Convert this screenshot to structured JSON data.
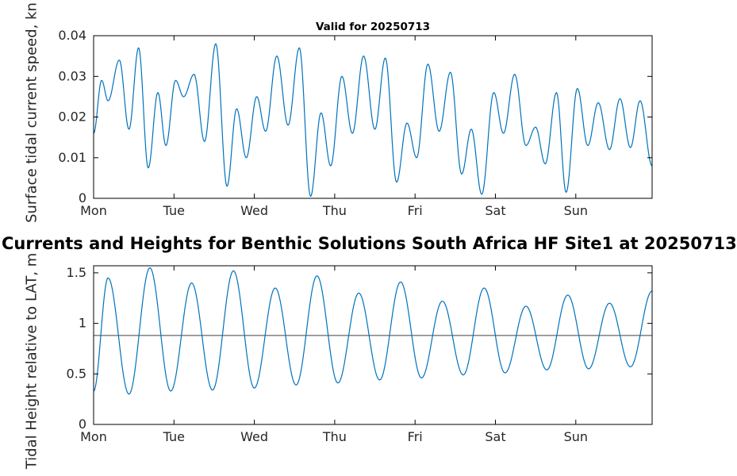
{
  "main_title": "Currents and Heights for Benthic Solutions South Africa HF Site1 at 20250713",
  "colors": {
    "background": "#ffffff",
    "line": "#0072BD",
    "refline": "#404040",
    "axis": "#000000",
    "tick_text": "#262626"
  },
  "chart_data": [
    {
      "type": "line",
      "title": "Valid for 20250713",
      "ylabel": "Surface tidal current speed, kn",
      "x_unit": "days since Monday 00:00",
      "xlim": [
        0,
        6.95
      ],
      "ylim": [
        0,
        0.04
      ],
      "xticks": [
        0,
        1,
        2,
        3,
        4,
        5,
        6
      ],
      "xticklabels": [
        "Mon",
        "Tue",
        "Wed",
        "Thu",
        "Fri",
        "Sat",
        "Sun"
      ],
      "yticks": [
        0,
        0.01,
        0.02,
        0.03,
        0.04
      ],
      "yticklabels": [
        "0",
        "0.01",
        "0.02",
        "0.03",
        "0.04"
      ],
      "grid": false,
      "legend": "none",
      "extrema": [
        [
          0.0,
          0.016
        ],
        [
          0.1,
          0.029
        ],
        [
          0.18,
          0.024
        ],
        [
          0.32,
          0.034
        ],
        [
          0.44,
          0.017
        ],
        [
          0.56,
          0.037
        ],
        [
          0.68,
          0.0075
        ],
        [
          0.8,
          0.026
        ],
        [
          0.9,
          0.013
        ],
        [
          1.02,
          0.029
        ],
        [
          1.12,
          0.025
        ],
        [
          1.25,
          0.0305
        ],
        [
          1.38,
          0.014
        ],
        [
          1.52,
          0.038
        ],
        [
          1.66,
          0.003
        ],
        [
          1.78,
          0.022
        ],
        [
          1.9,
          0.01
        ],
        [
          2.03,
          0.025
        ],
        [
          2.14,
          0.0165
        ],
        [
          2.28,
          0.035
        ],
        [
          2.42,
          0.018
        ],
        [
          2.56,
          0.037
        ],
        [
          2.7,
          0.0005
        ],
        [
          2.83,
          0.021
        ],
        [
          2.95,
          0.008
        ],
        [
          3.09,
          0.03
        ],
        [
          3.22,
          0.016
        ],
        [
          3.36,
          0.035
        ],
        [
          3.5,
          0.017
        ],
        [
          3.63,
          0.0345
        ],
        [
          3.77,
          0.004
        ],
        [
          3.9,
          0.0185
        ],
        [
          4.02,
          0.01
        ],
        [
          4.16,
          0.033
        ],
        [
          4.3,
          0.0165
        ],
        [
          4.44,
          0.031
        ],
        [
          4.58,
          0.006
        ],
        [
          4.7,
          0.017
        ],
        [
          4.83,
          0.001
        ],
        [
          4.98,
          0.026
        ],
        [
          5.1,
          0.016
        ],
        [
          5.24,
          0.0305
        ],
        [
          5.38,
          0.013
        ],
        [
          5.5,
          0.0175
        ],
        [
          5.62,
          0.0085
        ],
        [
          5.76,
          0.026
        ],
        [
          5.88,
          0.0015
        ],
        [
          6.02,
          0.027
        ],
        [
          6.15,
          0.013
        ],
        [
          6.28,
          0.0235
        ],
        [
          6.42,
          0.012
        ],
        [
          6.55,
          0.0245
        ],
        [
          6.68,
          0.0125
        ],
        [
          6.8,
          0.024
        ],
        [
          6.95,
          0.008
        ]
      ]
    },
    {
      "type": "line",
      "title": "",
      "ylabel": "Tidal Height relative to LAT, m",
      "x_unit": "days since Monday 00:00",
      "xlim": [
        0,
        6.95
      ],
      "ylim": [
        0,
        1.57
      ],
      "xticks": [
        0,
        1,
        2,
        3,
        4,
        5,
        6
      ],
      "xticklabels": [
        "Mon",
        "Tue",
        "Wed",
        "Thu",
        "Fri",
        "Sat",
        "Sun"
      ],
      "yticks": [
        0,
        0.5,
        1,
        1.5
      ],
      "yticklabels": [
        "0",
        "0.5",
        "1",
        "1.5"
      ],
      "grid": false,
      "legend": "none",
      "refline": 0.88,
      "extrema": [
        [
          0.0,
          0.33
        ],
        [
          0.18,
          1.45
        ],
        [
          0.44,
          0.3
        ],
        [
          0.7,
          1.55
        ],
        [
          0.96,
          0.33
        ],
        [
          1.22,
          1.4
        ],
        [
          1.48,
          0.34
        ],
        [
          1.74,
          1.52
        ],
        [
          2.0,
          0.36
        ],
        [
          2.26,
          1.35
        ],
        [
          2.52,
          0.39
        ],
        [
          2.78,
          1.47
        ],
        [
          3.04,
          0.41
        ],
        [
          3.3,
          1.3
        ],
        [
          3.56,
          0.44
        ],
        [
          3.82,
          1.41
        ],
        [
          4.08,
          0.46
        ],
        [
          4.34,
          1.22
        ],
        [
          4.6,
          0.49
        ],
        [
          4.86,
          1.35
        ],
        [
          5.12,
          0.51
        ],
        [
          5.38,
          1.17
        ],
        [
          5.64,
          0.54
        ],
        [
          5.9,
          1.28
        ],
        [
          6.16,
          0.55
        ],
        [
          6.42,
          1.2
        ],
        [
          6.68,
          0.57
        ],
        [
          6.95,
          1.32
        ]
      ]
    }
  ]
}
